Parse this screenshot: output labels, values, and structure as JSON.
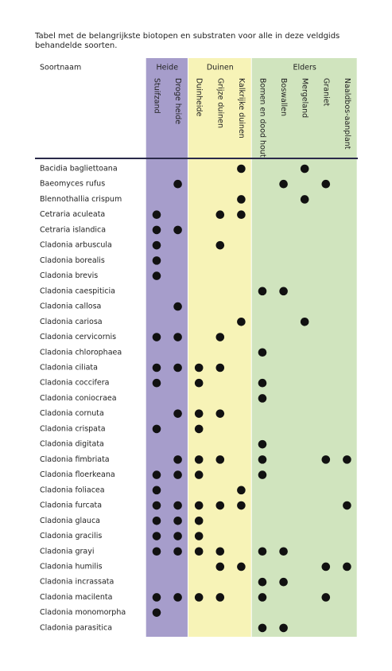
{
  "caption": "Tabel met de belangrijkste biotopen en substraten voor alle in deze veldgids behandelde soorten.",
  "header": {
    "name_column": "Soortnaam",
    "groups": [
      {
        "label": "Heide",
        "color": "#a69dcb",
        "columns": [
          "Stuifzand",
          "Droge heide"
        ]
      },
      {
        "label": "Duinen",
        "color": "#f7f3b7",
        "columns": [
          "Duinheide",
          "Grijze duinen",
          "Kalkrijke duinen"
        ]
      },
      {
        "label": "Elders",
        "color": "#d0e4be",
        "columns": [
          "Bomen en dood hout",
          "Boswallen",
          "Mergeland",
          "Graniet",
          "Naaldbos-aanplant"
        ]
      }
    ]
  },
  "rows": [
    {
      "name": "Bacidia bagliettoana",
      "cells": [
        false,
        false,
        false,
        false,
        true,
        false,
        false,
        true,
        false,
        false
      ]
    },
    {
      "name": "Baeomyces rufus",
      "cells": [
        false,
        true,
        false,
        false,
        false,
        false,
        true,
        false,
        true,
        false
      ]
    },
    {
      "name": "Blennothallia crispum",
      "cells": [
        false,
        false,
        false,
        false,
        true,
        false,
        false,
        true,
        false,
        false
      ]
    },
    {
      "name": "Cetraria aculeata",
      "cells": [
        true,
        false,
        false,
        true,
        true,
        false,
        false,
        false,
        false,
        false
      ]
    },
    {
      "name": "Cetraria islandica",
      "cells": [
        true,
        true,
        false,
        false,
        false,
        false,
        false,
        false,
        false,
        false
      ]
    },
    {
      "name": "Cladonia arbuscula",
      "cells": [
        true,
        false,
        false,
        true,
        false,
        false,
        false,
        false,
        false,
        false
      ]
    },
    {
      "name": "Cladonia borealis",
      "cells": [
        true,
        false,
        false,
        false,
        false,
        false,
        false,
        false,
        false,
        false
      ]
    },
    {
      "name": "Cladonia brevis",
      "cells": [
        true,
        false,
        false,
        false,
        false,
        false,
        false,
        false,
        false,
        false
      ]
    },
    {
      "name": "Cladonia caespiticia",
      "cells": [
        false,
        false,
        false,
        false,
        false,
        true,
        true,
        false,
        false,
        false
      ]
    },
    {
      "name": "Cladonia callosa",
      "cells": [
        false,
        true,
        false,
        false,
        false,
        false,
        false,
        false,
        false,
        false
      ]
    },
    {
      "name": "Cladonia cariosa",
      "cells": [
        false,
        false,
        false,
        false,
        true,
        false,
        false,
        true,
        false,
        false
      ]
    },
    {
      "name": "Cladonia cervicornis",
      "cells": [
        true,
        true,
        false,
        true,
        false,
        false,
        false,
        false,
        false,
        false
      ]
    },
    {
      "name": "Cladonia chlorophaea",
      "cells": [
        false,
        false,
        false,
        false,
        false,
        true,
        false,
        false,
        false,
        false
      ]
    },
    {
      "name": "Cladonia ciliata",
      "cells": [
        true,
        true,
        true,
        true,
        false,
        false,
        false,
        false,
        false,
        false
      ]
    },
    {
      "name": "Cladonia coccifera",
      "cells": [
        true,
        false,
        true,
        false,
        false,
        true,
        false,
        false,
        false,
        false
      ]
    },
    {
      "name": "Cladonia coniocraea",
      "cells": [
        false,
        false,
        false,
        false,
        false,
        true,
        false,
        false,
        false,
        false
      ]
    },
    {
      "name": "Cladonia cornuta",
      "cells": [
        false,
        true,
        true,
        true,
        false,
        false,
        false,
        false,
        false,
        false
      ]
    },
    {
      "name": "Cladonia crispata",
      "cells": [
        true,
        false,
        true,
        false,
        false,
        false,
        false,
        false,
        false,
        false
      ]
    },
    {
      "name": "Cladonia digitata",
      "cells": [
        false,
        false,
        false,
        false,
        false,
        true,
        false,
        false,
        false,
        false
      ]
    },
    {
      "name": "Cladonia fimbriata",
      "cells": [
        false,
        true,
        true,
        true,
        false,
        true,
        false,
        false,
        true,
        true
      ]
    },
    {
      "name": "Cladonia floerkeana",
      "cells": [
        true,
        true,
        true,
        false,
        false,
        true,
        false,
        false,
        false,
        false
      ]
    },
    {
      "name": "Cladonia foliacea",
      "cells": [
        true,
        false,
        false,
        false,
        true,
        false,
        false,
        false,
        false,
        false
      ]
    },
    {
      "name": "Cladonia furcata",
      "cells": [
        true,
        true,
        true,
        true,
        true,
        false,
        false,
        false,
        false,
        true
      ]
    },
    {
      "name": "Cladonia glauca",
      "cells": [
        true,
        true,
        true,
        false,
        false,
        false,
        false,
        false,
        false,
        false
      ]
    },
    {
      "name": "Cladonia gracilis",
      "cells": [
        true,
        true,
        true,
        false,
        false,
        false,
        false,
        false,
        false,
        false
      ]
    },
    {
      "name": "Cladonia grayi",
      "cells": [
        true,
        true,
        true,
        true,
        false,
        true,
        true,
        false,
        false,
        false
      ]
    },
    {
      "name": "Cladonia humilis",
      "cells": [
        false,
        false,
        false,
        true,
        true,
        false,
        false,
        false,
        true,
        true
      ]
    },
    {
      "name": "Cladonia incrassata",
      "cells": [
        false,
        false,
        false,
        false,
        false,
        true,
        true,
        false,
        false,
        false
      ]
    },
    {
      "name": "Cladonia macilenta",
      "cells": [
        true,
        true,
        true,
        true,
        false,
        true,
        false,
        false,
        true,
        false
      ]
    },
    {
      "name": "Cladonia monomorpha",
      "cells": [
        true,
        false,
        false,
        false,
        false,
        false,
        false,
        false,
        false,
        false
      ]
    },
    {
      "name": "Cladonia parasitica",
      "cells": [
        false,
        false,
        false,
        false,
        false,
        true,
        true,
        false,
        false,
        false
      ]
    }
  ]
}
